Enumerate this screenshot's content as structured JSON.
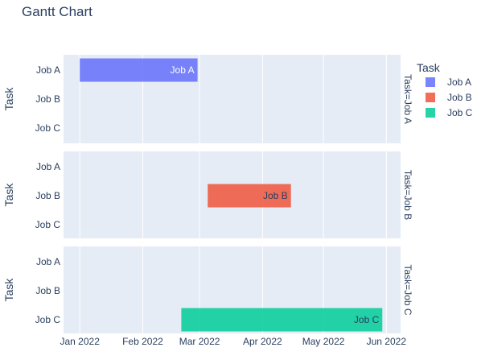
{
  "chart_data": {
    "type": "gantt",
    "title": "Gantt Chart",
    "y_axis_title": "Task",
    "categories": [
      "Job A",
      "Job B",
      "Job C"
    ],
    "x_range": [
      "2021-12-24",
      "2022-06-08"
    ],
    "x_ticks": [
      {
        "date": "2022-01-01",
        "label": "Jan 2022"
      },
      {
        "date": "2022-02-01",
        "label": "Feb 2022"
      },
      {
        "date": "2022-03-01",
        "label": "Mar 2022"
      },
      {
        "date": "2022-04-01",
        "label": "Apr 2022"
      },
      {
        "date": "2022-05-01",
        "label": "May 2022"
      },
      {
        "date": "2022-06-01",
        "label": "Jun 2022"
      }
    ],
    "legend_title": "Task",
    "legend_position": "top-right",
    "grid": true,
    "facets": [
      {
        "label": "Task=Job A",
        "task": "Job A",
        "start": "2022-01-01",
        "finish": "2022-02-28",
        "color": "#636efa",
        "bar_label": "Job A",
        "label_color": "#ffffff"
      },
      {
        "label": "Task=Job B",
        "task": "Job B",
        "start": "2022-03-05",
        "finish": "2022-04-15",
        "color": "#ef553b",
        "bar_label": "Job B",
        "label_color": "#2a3f5f"
      },
      {
        "label": "Task=Job C",
        "task": "Job C",
        "start": "2022-02-20",
        "finish": "2022-05-30",
        "color": "#00cc96",
        "bar_label": "Job C",
        "label_color": "#2a3f5f"
      }
    ]
  }
}
